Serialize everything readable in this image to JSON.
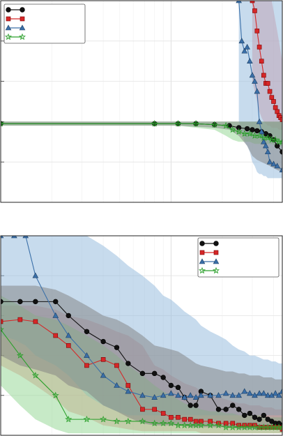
{
  "colors": {
    "black": "#111111",
    "red": "#d62728",
    "blue": "#3a6fa8",
    "green": "#2ca02c",
    "band_black": "#7f7f7f",
    "band_red": "#f08a8a",
    "band_blue": "#8fb8dc",
    "band_green": "#8fd68f"
  },
  "chart_data": [
    {
      "type": "line",
      "title": "",
      "xlabel": "",
      "ylabel": "",
      "x_scale": "log",
      "xlim": [
        1,
        45
      ],
      "ylim": [
        0,
        100
      ],
      "grid": true,
      "legend_position": "top-left",
      "series": [
        {
          "color_key": "black",
          "marker": "circle",
          "x": [
            1,
            8,
            11,
            14,
            18,
            22,
            25,
            28,
            30,
            32,
            34,
            36,
            38,
            40,
            42,
            45
          ],
          "y": [
            39,
            39,
            39,
            39,
            38.5,
            38,
            37,
            36.5,
            36,
            35.5,
            35,
            34,
            33,
            31,
            28,
            25
          ],
          "band_upper": [
            40,
            40,
            40,
            40,
            40,
            40,
            40,
            40,
            40,
            40,
            40,
            40,
            40,
            40,
            40,
            40
          ],
          "band_lower": [
            38,
            38,
            38,
            37.5,
            37,
            36,
            33,
            28,
            23,
            21,
            20,
            19,
            18,
            17,
            16,
            15
          ]
        },
        {
          "color_key": "red",
          "marker": "square",
          "x": [
            30,
            31,
            32,
            33,
            34,
            35,
            36,
            37,
            38,
            39,
            40,
            41,
            42,
            43,
            44,
            45
          ],
          "y": [
            100,
            95,
            85,
            77,
            70,
            63,
            59,
            59,
            55,
            52,
            50,
            47,
            45,
            43,
            42,
            41
          ],
          "band_upper": [
            100,
            100,
            100,
            100,
            100,
            100,
            100,
            100,
            100,
            100,
            95,
            90,
            85,
            80,
            75,
            70
          ],
          "band_lower": [
            60,
            55,
            50,
            45,
            42,
            40,
            39,
            38,
            38,
            37,
            37,
            37,
            37,
            36,
            36,
            36
          ]
        },
        {
          "color_key": "blue",
          "marker": "triangle",
          "x": [
            25,
            26,
            27,
            28,
            29,
            30,
            31,
            32,
            33,
            34,
            35,
            36,
            37,
            38,
            40,
            42,
            45
          ],
          "y": [
            100,
            80,
            75,
            77,
            70,
            63,
            60,
            55,
            40,
            35,
            30,
            28,
            25,
            20,
            19,
            18,
            16
          ],
          "band_upper": [
            100,
            100,
            100,
            100,
            100,
            100,
            100,
            100,
            100,
            100,
            100,
            100,
            100,
            100,
            100,
            100,
            100
          ],
          "band_lower": [
            40,
            35,
            30,
            28,
            25,
            20,
            18,
            15,
            14,
            14,
            13,
            13,
            12,
            12,
            12,
            12,
            12
          ]
        },
        {
          "color_key": "green",
          "marker": "star",
          "x": [
            1,
            8,
            11,
            14,
            18,
            21,
            23,
            25,
            27,
            29,
            31,
            33,
            35,
            37,
            39,
            41,
            43,
            45
          ],
          "y": [
            39,
            39,
            39,
            39,
            38.5,
            38,
            36,
            35,
            34,
            34,
            33,
            33,
            32,
            32,
            31,
            31,
            30,
            30
          ],
          "band_upper": [
            40,
            40,
            40,
            40,
            40,
            40,
            40,
            40,
            40,
            40,
            40,
            40,
            40,
            40,
            40,
            40,
            40,
            40
          ],
          "band_lower": [
            38,
            38,
            38,
            37,
            36,
            33,
            31,
            30,
            30,
            30,
            29,
            29,
            29,
            29,
            29,
            28,
            28,
            28
          ]
        }
      ]
    },
    {
      "type": "line",
      "title": "",
      "xlabel": "",
      "ylabel": "",
      "x_scale": "log",
      "xlim": [
        1,
        45
      ],
      "ylim": [
        0,
        100
      ],
      "grid": true,
      "legend_position": "top-right",
      "series": [
        {
          "color_key": "black",
          "marker": "circle",
          "x": [
            1,
            1.3,
            1.6,
            2.1,
            2.5,
            3.2,
            4,
            4.8,
            5.6,
            6.8,
            8,
            9,
            10,
            11,
            12,
            13,
            14,
            15,
            17,
            19,
            21,
            23,
            25,
            27,
            29,
            31,
            33,
            35,
            37,
            39,
            41,
            43,
            45
          ],
          "y": [
            67,
            67,
            67,
            67,
            60,
            52,
            47,
            44,
            36,
            31,
            31,
            29,
            25,
            24,
            19,
            15,
            15,
            22,
            20,
            13,
            13,
            15,
            13,
            10,
            11,
            9,
            8,
            10,
            8,
            7,
            6,
            6,
            5
          ],
          "band_upper": [
            75,
            75,
            75,
            73,
            70,
            65,
            60,
            58,
            55,
            50,
            45,
            44,
            43,
            42,
            40,
            38,
            36,
            35,
            34,
            33,
            32,
            32,
            31,
            31,
            30,
            30,
            30,
            29,
            29,
            29,
            28,
            28,
            28
          ],
          "band_lower": [
            40,
            35,
            33,
            30,
            25,
            22,
            15,
            12,
            9,
            6,
            5,
            5,
            5,
            5,
            5,
            4,
            4,
            4,
            4,
            4,
            4,
            4,
            3,
            3,
            3,
            3,
            3,
            3,
            3,
            3,
            3,
            3,
            3
          ]
        },
        {
          "color_key": "red",
          "marker": "square",
          "x": [
            1,
            1.3,
            1.6,
            2.1,
            2.5,
            3.2,
            4,
            4.8,
            5.6,
            6.8,
            8,
            9,
            10,
            11,
            12,
            13,
            14,
            15,
            17,
            19,
            21,
            23,
            25,
            27,
            29,
            31,
            33,
            35,
            37,
            39,
            41,
            43,
            45
          ],
          "y": [
            57,
            58,
            57,
            50,
            45,
            35,
            38,
            35,
            25,
            13,
            13,
            11,
            9,
            9,
            8,
            8,
            7,
            7,
            7,
            6,
            6,
            6,
            5,
            5,
            5,
            5,
            4,
            4,
            4,
            4,
            4,
            4,
            3
          ],
          "band_upper": [
            65,
            65,
            65,
            63,
            60,
            58,
            55,
            52,
            50,
            45,
            35,
            33,
            30,
            28,
            26,
            25,
            24,
            22,
            20,
            19,
            18,
            17,
            16,
            16,
            15,
            15,
            15,
            14,
            14,
            14,
            13,
            13,
            13
          ],
          "band_lower": [
            35,
            30,
            25,
            18,
            12,
            9,
            5,
            4,
            3,
            2,
            2,
            2,
            2,
            2,
            2,
            2,
            2,
            1,
            1,
            1,
            1,
            1,
            1,
            1,
            1,
            1,
            1,
            1,
            1,
            1,
            1,
            1,
            1
          ]
        },
        {
          "color_key": "blue",
          "marker": "triangle",
          "x": [
            1,
            1.2,
            1.4,
            1.6,
            2.1,
            2.5,
            3.2,
            4,
            4.8,
            5.6,
            6.8,
            8,
            9,
            10,
            11,
            12,
            13,
            14,
            15,
            17,
            19,
            21,
            23,
            25,
            27,
            29,
            31,
            33,
            35,
            37,
            39,
            41,
            43,
            45
          ],
          "y": [
            100,
            100,
            100,
            80,
            60,
            50,
            40,
            30,
            25,
            22,
            20,
            19,
            20,
            21,
            20,
            19,
            20,
            19,
            20,
            20,
            20,
            21,
            20,
            20,
            22,
            21,
            20,
            21,
            21,
            20,
            20,
            21,
            20,
            22
          ],
          "band_upper": [
            100,
            100,
            100,
            100,
            100,
            100,
            100,
            95,
            90,
            85,
            80,
            75,
            70,
            68,
            65,
            62,
            60,
            58,
            55,
            52,
            50,
            48,
            45,
            43,
            42,
            40,
            40,
            39,
            38,
            38,
            37,
            37,
            36,
            36
          ],
          "band_lower": [
            50,
            48,
            45,
            40,
            35,
            30,
            20,
            15,
            12,
            10,
            10,
            10,
            10,
            10,
            10,
            10,
            10,
            10,
            10,
            10,
            10,
            10,
            10,
            10,
            10,
            10,
            10,
            10,
            10,
            10,
            10,
            10,
            10,
            10
          ]
        },
        {
          "color_key": "green",
          "marker": "star",
          "x": [
            1,
            1.3,
            1.6,
            2.1,
            2.5,
            3.2,
            4,
            4.8,
            5.6,
            6.8,
            8,
            9,
            10,
            11,
            12,
            13,
            14,
            15,
            17,
            19,
            21,
            23,
            25,
            27,
            29,
            31,
            33,
            35,
            37,
            39,
            41,
            43,
            45
          ],
          "y": [
            53,
            40,
            30,
            20,
            8,
            8,
            8,
            7,
            7,
            7,
            6,
            6,
            6,
            5,
            5,
            5,
            5,
            5,
            5,
            5,
            4,
            4,
            4,
            4,
            4,
            4,
            4,
            4,
            4,
            4,
            4,
            4,
            4
          ],
          "band_upper": [
            70,
            65,
            60,
            58,
            55,
            50,
            45,
            40,
            35,
            30,
            25,
            22,
            20,
            18,
            16,
            15,
            14,
            13,
            12,
            12,
            11,
            11,
            10,
            10,
            10,
            10,
            10,
            9,
            9,
            9,
            9,
            9,
            9
          ],
          "band_lower": [
            25,
            15,
            8,
            3,
            1,
            1,
            1,
            1,
            1,
            1,
            1,
            1,
            1,
            1,
            1,
            1,
            1,
            1,
            1,
            1,
            1,
            1,
            1,
            1,
            1,
            1,
            1,
            1,
            1,
            1,
            1,
            1,
            1
          ]
        }
      ]
    }
  ]
}
